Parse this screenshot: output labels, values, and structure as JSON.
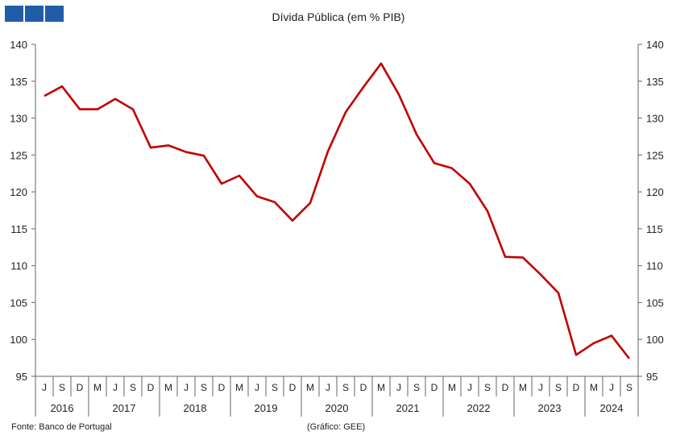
{
  "brand": {
    "color": "#1f5da8",
    "squares": 3
  },
  "footer": {
    "source": "Fonte: Banco de Portugal",
    "credit": "(Gráfico: GEE)"
  },
  "chart_data": {
    "type": "line",
    "title": "Dívida Pública (em % PIB)",
    "xlabel": "",
    "ylabel": "",
    "ylim": [
      95,
      140
    ],
    "yticks": [
      95,
      100,
      105,
      110,
      115,
      120,
      125,
      130,
      135,
      140
    ],
    "y_axis_right": true,
    "grid": false,
    "line_color": "#c00000",
    "x": [
      "J",
      "S",
      "D",
      "M",
      "J",
      "S",
      "D",
      "M",
      "J",
      "S",
      "D",
      "M",
      "J",
      "S",
      "D",
      "M",
      "J",
      "S",
      "D",
      "M",
      "J",
      "S",
      "D",
      "M",
      "J",
      "S",
      "D",
      "M",
      "J",
      "S",
      "D",
      "M",
      "J",
      "S"
    ],
    "years": [
      {
        "label": "2016",
        "count": 3
      },
      {
        "label": "2017",
        "count": 4
      },
      {
        "label": "2018",
        "count": 4
      },
      {
        "label": "2019",
        "count": 4
      },
      {
        "label": "2020",
        "count": 4
      },
      {
        "label": "2021",
        "count": 4
      },
      {
        "label": "2022",
        "count": 4
      },
      {
        "label": "2023",
        "count": 4
      },
      {
        "label": "2024",
        "count": 3
      }
    ],
    "series": [
      {
        "values": [
          133.0,
          134.3,
          131.2,
          131.2,
          132.6,
          131.2,
          126.0,
          126.3,
          125.4,
          124.9,
          121.1,
          122.2,
          119.4,
          118.6,
          116.1,
          118.5,
          125.5,
          130.8,
          134.2,
          137.4,
          133.2,
          127.8,
          123.9,
          123.2,
          121.1,
          117.4,
          111.2,
          111.1,
          108.8,
          106.3,
          97.9,
          99.5,
          100.5,
          97.4
        ]
      }
    ]
  }
}
